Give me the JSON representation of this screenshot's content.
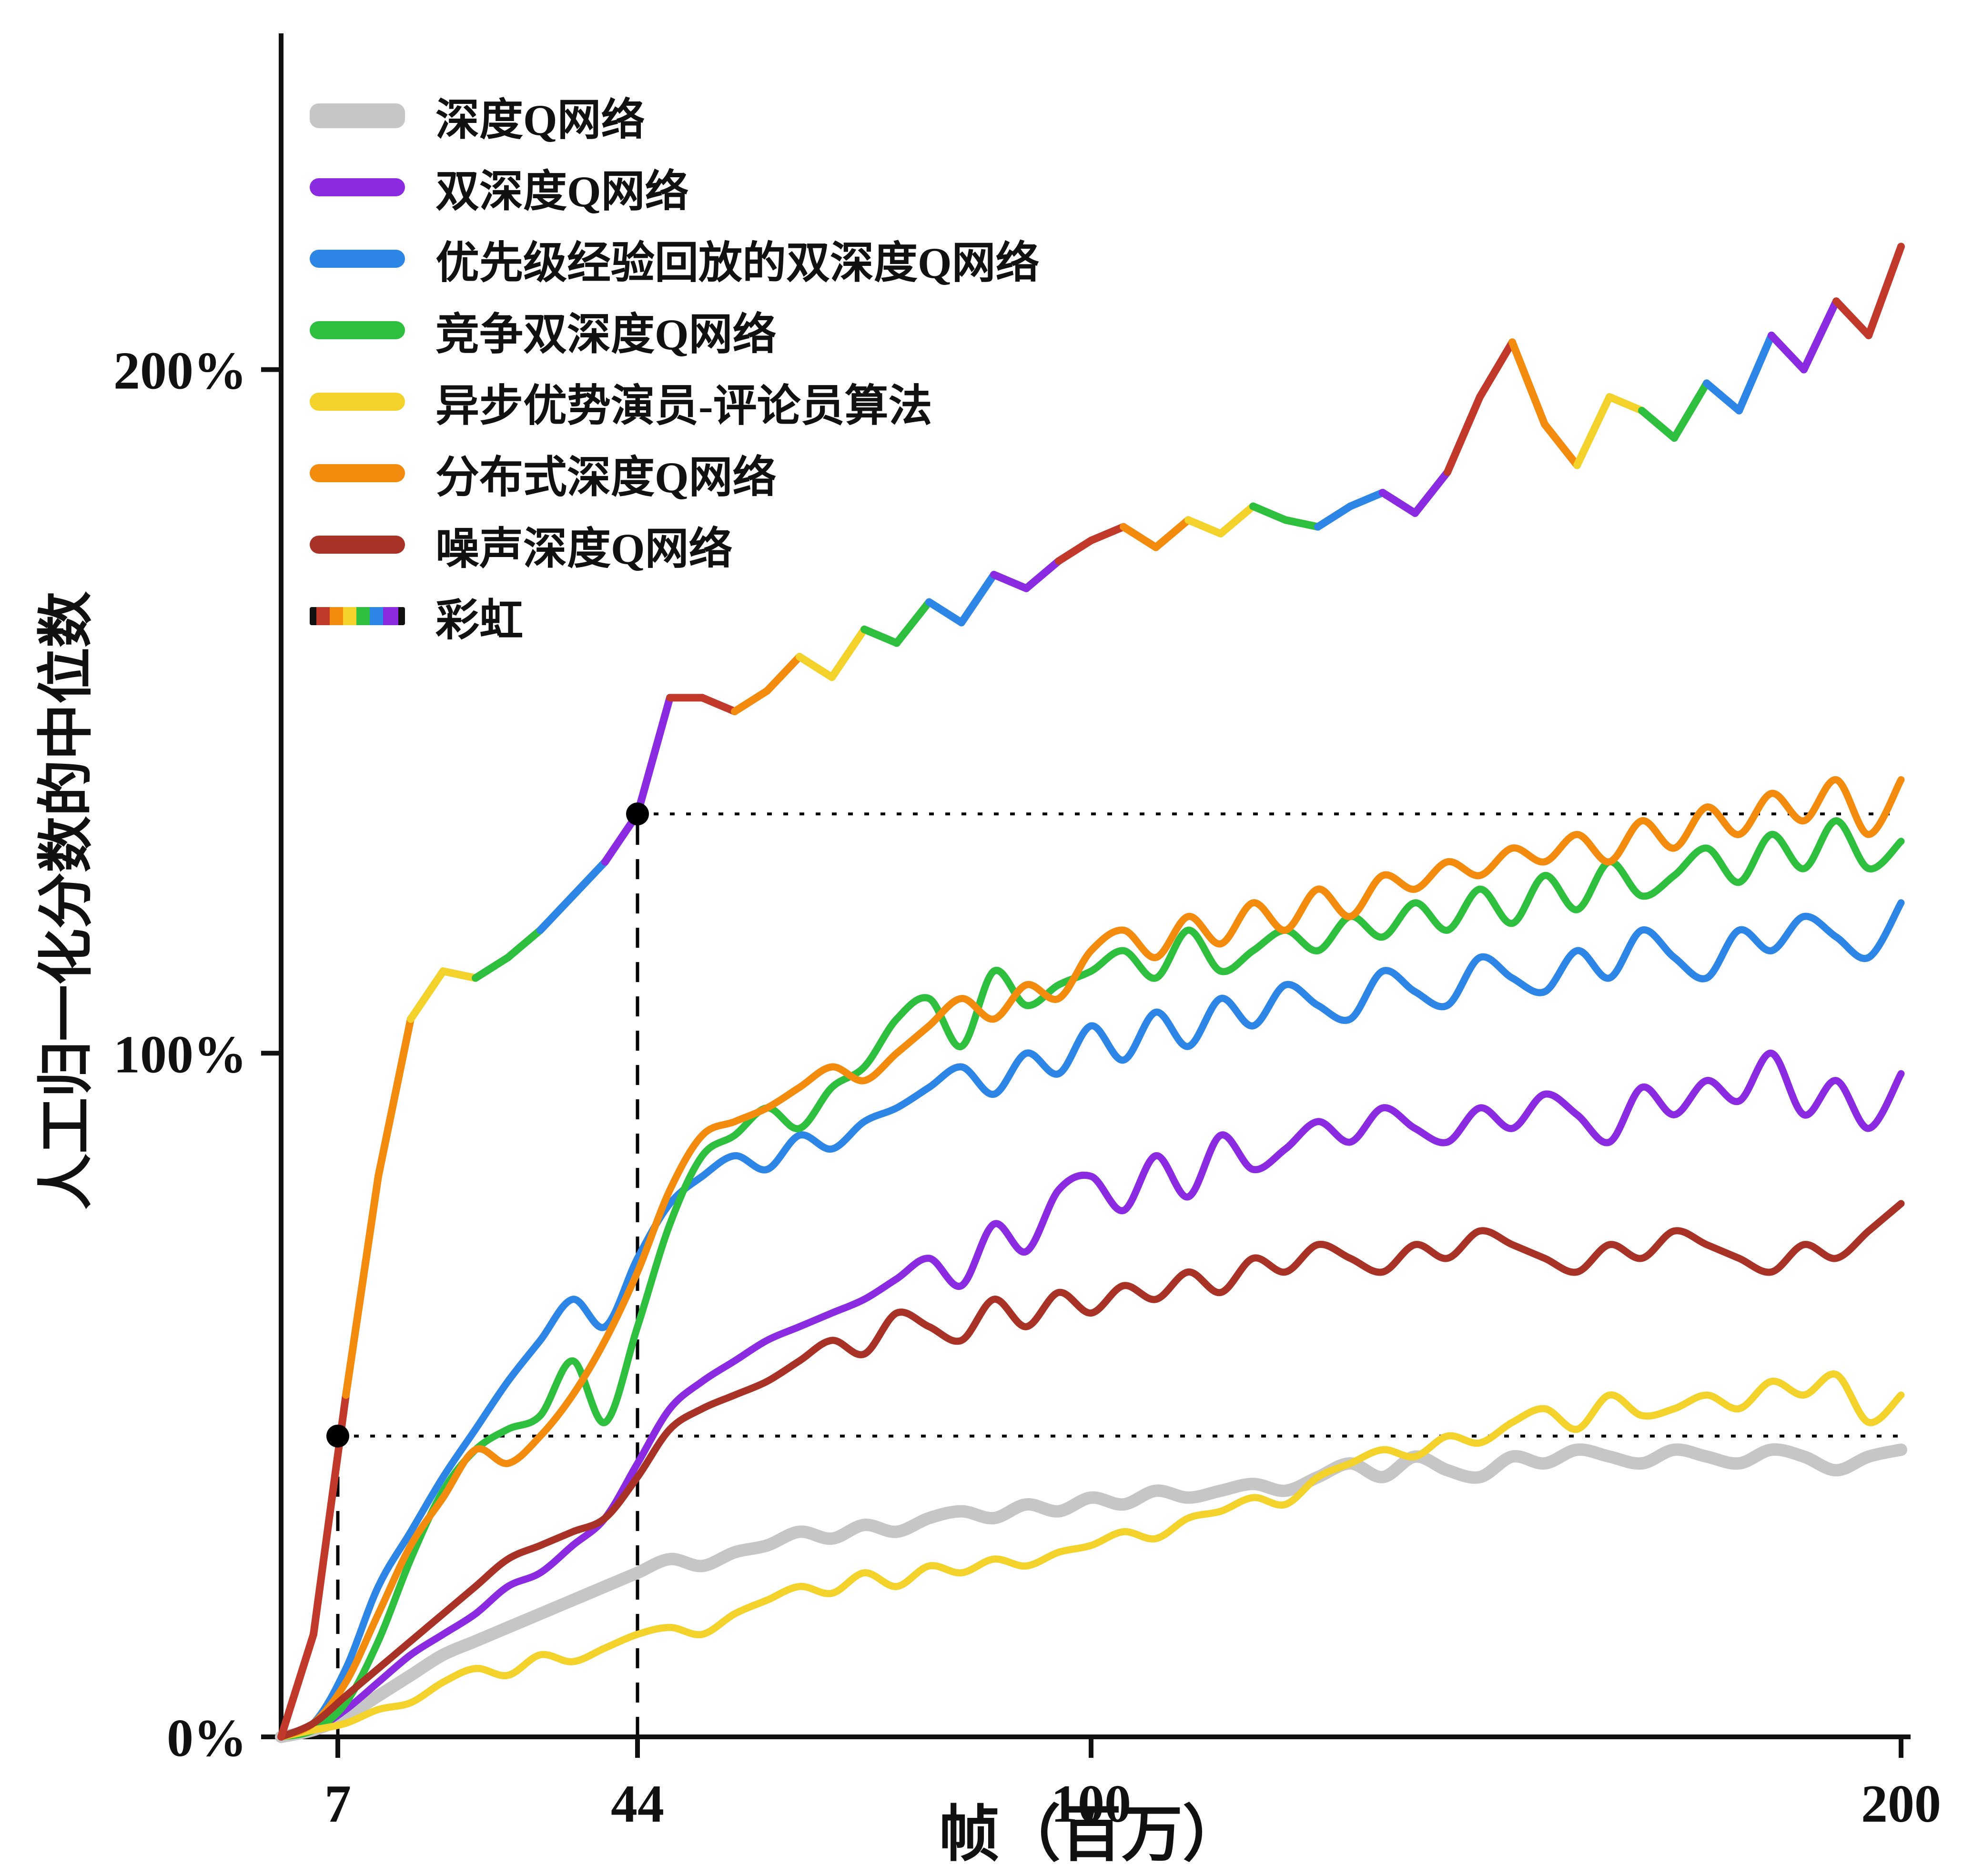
{
  "page": {
    "background": "#ffffff"
  },
  "chart_data": {
    "type": "line",
    "title": "",
    "xlabel": "帧（百万）",
    "ylabel": "人工归一化分数的中位数",
    "xlim": [
      0,
      200
    ],
    "ylim": [
      0,
      245
    ],
    "grid": false,
    "legend_position": "top-left",
    "axis_color": "#111111",
    "x_ticks": [
      {
        "value": 7,
        "label": "7"
      },
      {
        "value": 44,
        "label": "44"
      },
      {
        "value": 100,
        "label": "100"
      },
      {
        "value": 200,
        "label": "200"
      }
    ],
    "y_ticks": [
      {
        "value": 0,
        "label": "0%"
      },
      {
        "value": 100,
        "label": "100%"
      },
      {
        "value": 200,
        "label": "200%"
      }
    ],
    "x": [
      0,
      4,
      8,
      12,
      16,
      20,
      24,
      28,
      32,
      36,
      40,
      44,
      48,
      52,
      56,
      60,
      64,
      68,
      72,
      76,
      80,
      84,
      88,
      92,
      96,
      100,
      104,
      108,
      112,
      116,
      120,
      124,
      128,
      132,
      136,
      140,
      144,
      148,
      152,
      156,
      160,
      164,
      168,
      172,
      176,
      180,
      184,
      188,
      192,
      196,
      200
    ],
    "series": [
      {
        "key": "dqn",
        "name": "深度Q网络",
        "color": "#c6c6c6",
        "width": 26,
        "values": [
          0,
          1,
          3,
          6,
          9,
          12,
          14,
          16,
          18,
          20,
          22,
          24,
          26,
          25,
          27,
          28,
          30,
          29,
          31,
          30,
          32,
          33,
          32,
          34,
          33,
          35,
          34,
          36,
          35,
          36,
          37,
          36,
          38,
          40,
          38,
          41,
          39,
          38,
          41,
          40,
          42,
          41,
          40,
          42,
          41,
          40,
          42,
          41,
          39,
          41,
          42
        ]
      },
      {
        "key": "double-dqn",
        "name": "双深度Q网络",
        "color": "#8a2be2",
        "width": 15,
        "values": [
          0,
          1,
          4,
          8,
          12,
          15,
          18,
          22,
          24,
          28,
          32,
          40,
          48,
          52,
          55,
          58,
          60,
          62,
          64,
          67,
          70,
          66,
          75,
          71,
          80,
          82,
          77,
          85,
          79,
          88,
          83,
          86,
          90,
          87,
          92,
          89,
          87,
          92,
          89,
          94,
          91,
          87,
          95,
          91,
          96,
          93,
          100,
          91,
          96,
          89,
          97
        ]
      },
      {
        "key": "prioritized-ddqn",
        "name": "优先级经验回放的双深度Q网络",
        "color": "#2d86e5",
        "width": 15,
        "values": [
          0,
          2,
          10,
          22,
          30,
          38,
          45,
          52,
          58,
          64,
          60,
          70,
          78,
          82,
          85,
          83,
          88,
          86,
          90,
          92,
          95,
          98,
          94,
          100,
          97,
          104,
          99,
          106,
          101,
          108,
          104,
          110,
          107,
          105,
          112,
          109,
          107,
          114,
          111,
          109,
          115,
          111,
          118,
          114,
          111,
          118,
          115,
          120,
          117,
          114,
          122
        ]
      },
      {
        "key": "dueling-ddqn",
        "name": "竞争双深度Q网络",
        "color": "#2fbf3f",
        "width": 15,
        "values": [
          0,
          1,
          5,
          14,
          26,
          36,
          42,
          45,
          47,
          55,
          46,
          60,
          75,
          85,
          88,
          92,
          89,
          95,
          98,
          105,
          108,
          101,
          112,
          107,
          110,
          112,
          115,
          111,
          118,
          112,
          115,
          118,
          115,
          120,
          117,
          122,
          118,
          124,
          119,
          126,
          121,
          128,
          123,
          126,
          130,
          125,
          132,
          127,
          134,
          127,
          131
        ]
      },
      {
        "key": "a3c",
        "name": "异步优势演员-评论员算法",
        "color": "#f2d22b",
        "width": 15,
        "values": [
          0,
          1,
          2,
          4,
          5,
          8,
          10,
          9,
          12,
          11,
          13,
          15,
          16,
          15,
          18,
          20,
          22,
          21,
          24,
          22,
          25,
          24,
          26,
          25,
          27,
          28,
          30,
          29,
          32,
          33,
          35,
          34,
          38,
          40,
          42,
          41,
          44,
          43,
          46,
          48,
          45,
          50,
          47,
          48,
          50,
          48,
          52,
          50,
          53,
          46,
          50
        ]
      },
      {
        "key": "distributional-dqn",
        "name": "分布式深度Q网络",
        "color": "#f28b0e",
        "width": 15,
        "values": [
          0,
          2,
          8,
          18,
          28,
          35,
          42,
          40,
          44,
          50,
          58,
          68,
          80,
          88,
          90,
          92,
          95,
          98,
          96,
          100,
          104,
          108,
          105,
          110,
          108,
          115,
          118,
          114,
          120,
          116,
          122,
          118,
          124,
          120,
          126,
          124,
          128,
          126,
          130,
          128,
          132,
          128,
          134,
          130,
          136,
          132,
          138,
          134,
          140,
          132,
          140
        ]
      },
      {
        "key": "noisy-dqn",
        "name": "噪声深度Q网络",
        "color": "#a93226",
        "width": 15,
        "values": [
          0,
          2,
          6,
          10,
          14,
          18,
          22,
          26,
          28,
          30,
          32,
          38,
          45,
          48,
          50,
          52,
          55,
          58,
          56,
          62,
          60,
          58,
          64,
          60,
          65,
          62,
          66,
          64,
          68,
          65,
          70,
          68,
          72,
          70,
          68,
          72,
          70,
          74,
          72,
          70,
          68,
          72,
          70,
          74,
          72,
          70,
          68,
          72,
          70,
          74,
          78
        ]
      },
      {
        "key": "rainbow",
        "name": "彩虹",
        "color": "rainbow",
        "width": 16,
        "values": [
          0,
          15,
          50,
          82,
          105,
          112,
          111,
          114,
          118,
          123,
          128,
          135,
          152,
          152,
          150,
          153,
          158,
          155,
          162,
          160,
          166,
          163,
          170,
          168,
          172,
          175,
          177,
          174,
          178,
          176,
          180,
          178,
          177,
          180,
          182,
          179,
          185,
          196,
          204,
          192,
          186,
          196,
          194,
          190,
          198,
          194,
          205,
          200,
          210,
          205,
          218
        ]
      }
    ],
    "rainbow_palette": [
      "#c0392b",
      "#f28b0e",
      "#f2d22b",
      "#2fbf3f",
      "#2d86e5",
      "#8a2be2"
    ],
    "annotations": {
      "dot_color": "#000000",
      "milestones": [
        {
          "x": 7,
          "y": 44
        },
        {
          "x": 44,
          "y": 135
        }
      ]
    }
  }
}
